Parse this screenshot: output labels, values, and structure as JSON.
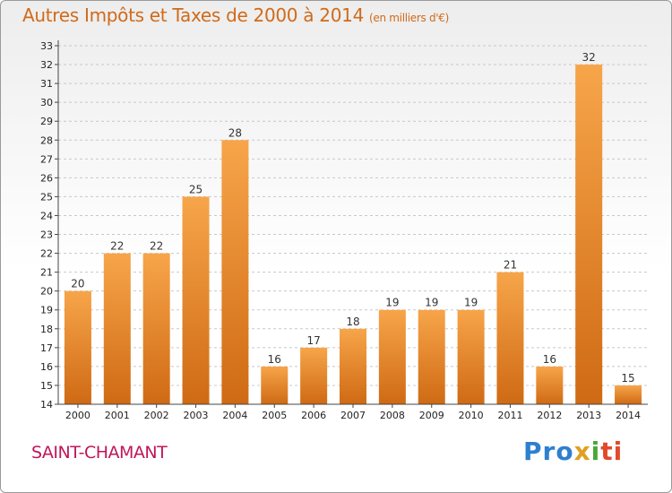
{
  "title": "Autres Impôts et Taxes de 2000 à 2014",
  "unit": "(en milliers d'€)",
  "commune": "SAINT-CHAMANT",
  "brand": {
    "p1": "Pro",
    "p2": "x",
    "p3": "i",
    "p4": "ti"
  },
  "chart_data": {
    "type": "bar",
    "title": "Autres Impôts et Taxes de 2000 à 2014",
    "ylabel": "",
    "xlabel": "",
    "categories": [
      "2000",
      "2001",
      "2002",
      "2003",
      "2004",
      "2005",
      "2006",
      "2007",
      "2008",
      "2009",
      "2010",
      "2011",
      "2012",
      "2013",
      "2014"
    ],
    "values": [
      20,
      22,
      22,
      25,
      28,
      16,
      17,
      18,
      19,
      19,
      19,
      21,
      16,
      32,
      15
    ],
    "ylim": [
      14,
      33
    ],
    "yticks": [
      14,
      15,
      16,
      17,
      18,
      19,
      20,
      21,
      22,
      23,
      24,
      25,
      26,
      27,
      28,
      29,
      30,
      31,
      32,
      33
    ],
    "grid": true,
    "bar_color": "#f39c40"
  }
}
